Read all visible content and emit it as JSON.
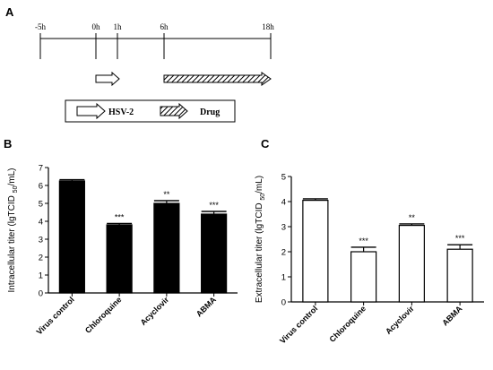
{
  "panel_a": {
    "label": "A",
    "timeline_labels": [
      "-5h",
      "0h",
      "1h",
      "6h",
      "18h"
    ],
    "legend": {
      "virus": "HSV-2",
      "drug": "Drug"
    }
  },
  "chart_data": [
    {
      "panel": "B",
      "type": "bar",
      "ylabel_prefix": "Intracellular titer (lgTCID",
      "ylabel_sub": "50",
      "ylabel_suffix": "/mL)",
      "ylim": [
        0,
        7
      ],
      "yticks": [
        "0",
        "1",
        "2",
        "3",
        "4",
        "5",
        "6",
        "7"
      ],
      "categories": [
        "Virus control",
        "Chloroquine",
        "Acyclovir",
        "ABMA"
      ],
      "values": [
        6.25,
        3.8,
        5.0,
        4.4
      ],
      "errors": [
        0.07,
        0.08,
        0.15,
        0.15
      ],
      "significance": [
        "",
        "***",
        "**",
        "***"
      ],
      "bar_color": "#000000"
    },
    {
      "panel": "C",
      "type": "bar",
      "ylabel_prefix": "Extracellular titer (lgTCID",
      "ylabel_sub": "50",
      "ylabel_suffix": "/mL)",
      "ylim": [
        0,
        5
      ],
      "yticks": [
        "0",
        "1",
        "2",
        "3",
        "4",
        "5"
      ],
      "categories": [
        "Virus control",
        "Chloroquine",
        "Acyclovir",
        "ABMA"
      ],
      "values": [
        4.05,
        2.0,
        3.05,
        2.1
      ],
      "errors": [
        0.06,
        0.18,
        0.06,
        0.18
      ],
      "significance": [
        "",
        "***",
        "**",
        "***"
      ],
      "bar_color": "#ffffff"
    }
  ]
}
